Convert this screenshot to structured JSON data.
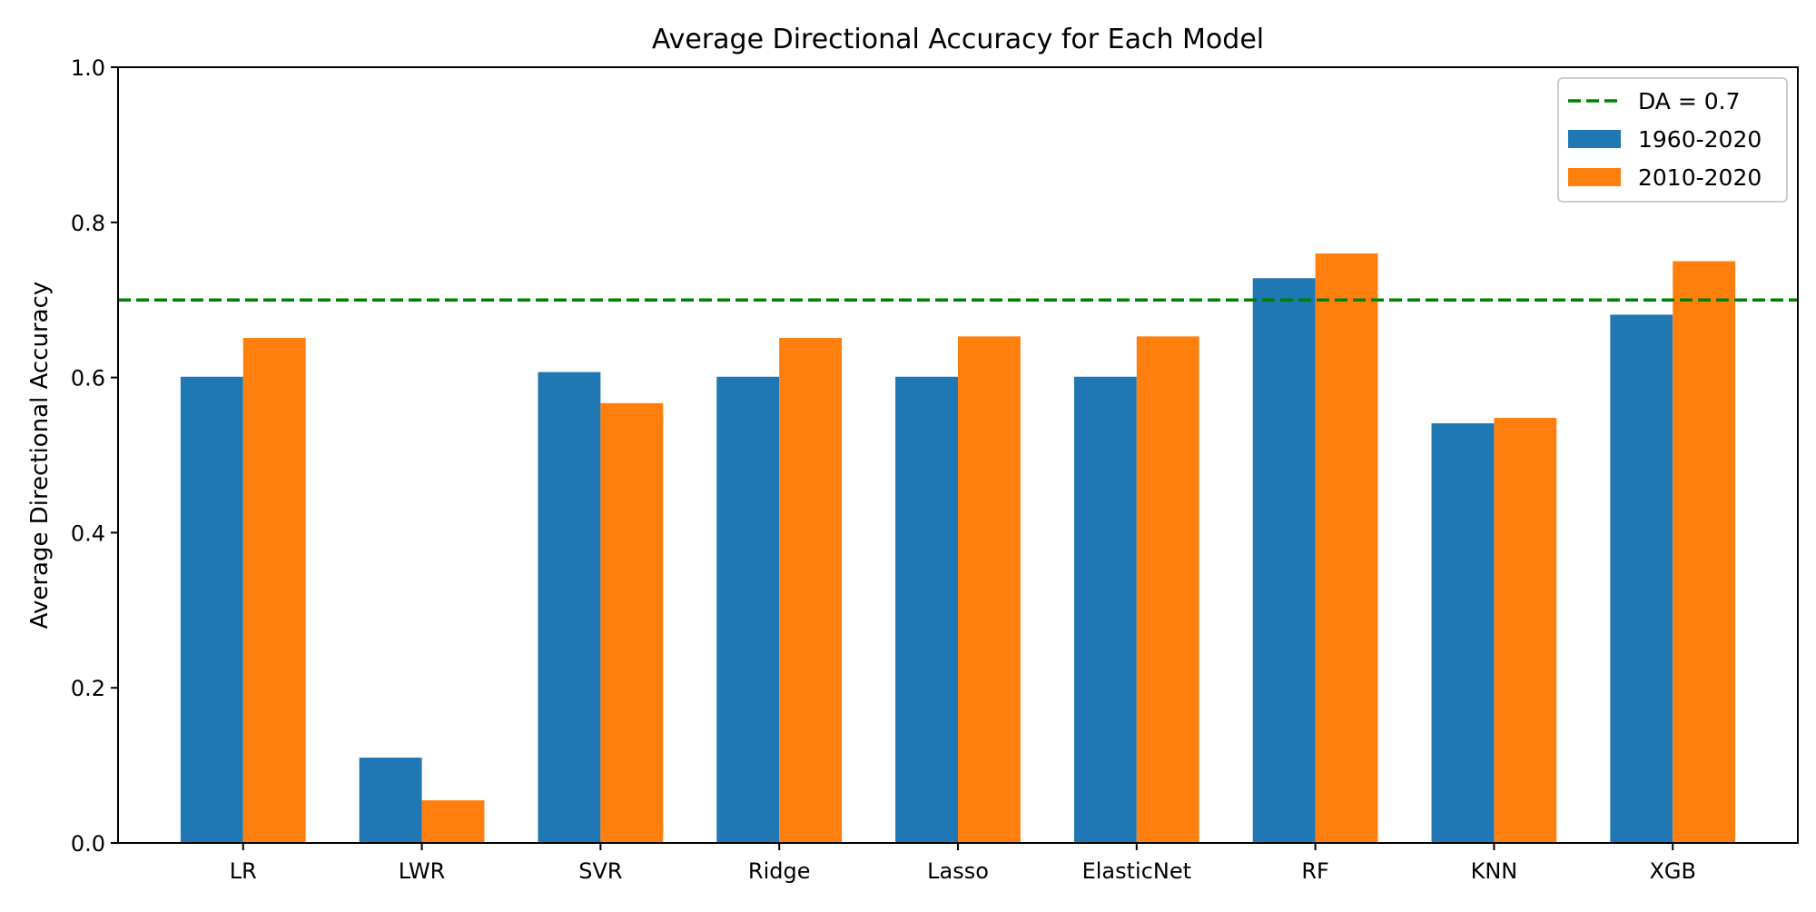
{
  "chart_data": {
    "type": "bar",
    "title": "Average Directional Accuracy for Each Model",
    "xlabel": "",
    "ylabel": "Average Directional Accuracy",
    "categories": [
      "LR",
      "LWR",
      "SVR",
      "Ridge",
      "Lasso",
      "ElasticNet",
      "RF",
      "KNN",
      "XGB"
    ],
    "series": [
      {
        "name": "1960-2020",
        "color": "#1f77b4",
        "values": [
          0.601,
          0.11,
          0.607,
          0.601,
          0.601,
          0.601,
          0.728,
          0.541,
          0.681
        ]
      },
      {
        "name": "2010-2020",
        "color": "#ff7f0e",
        "values": [
          0.651,
          0.055,
          0.567,
          0.651,
          0.653,
          0.653,
          0.76,
          0.548,
          0.75
        ]
      }
    ],
    "reference_line": {
      "label": "DA = 0.7",
      "value": 0.7,
      "color": "#008000",
      "style": "dashed"
    },
    "ylim": [
      0,
      1.0
    ],
    "yticks": [
      "0.0",
      "0.2",
      "0.4",
      "0.6",
      "0.8",
      "1.0"
    ],
    "grid": false,
    "legend_position": "top-right"
  }
}
